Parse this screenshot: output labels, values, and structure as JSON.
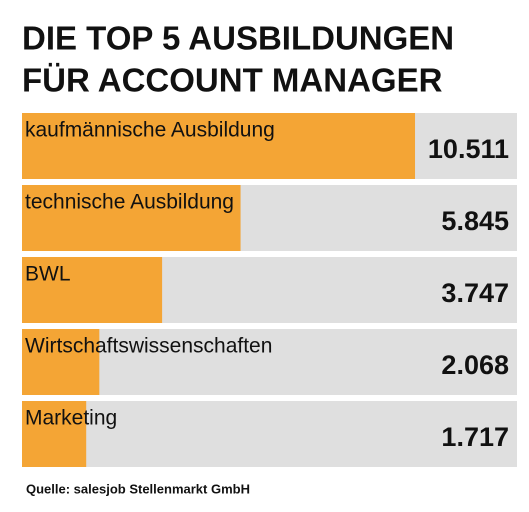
{
  "chart_data": {
    "type": "bar",
    "orientation": "horizontal",
    "title_lines": [
      "DIE TOP 5 AUSBILDUNGEN",
      "FÜR ACCOUNT MANAGER"
    ],
    "categories": [
      "kaufmännische Ausbildung",
      "technische Ausbildung",
      "BWL",
      "Wirtschaftswissenschaften",
      "Marketing"
    ],
    "values": [
      10511,
      5845,
      3747,
      2068,
      1717
    ],
    "value_labels": [
      "10.511",
      "5.845",
      "3.747",
      "2.068",
      "1.717"
    ],
    "color": "#f4a535",
    "track_color": "#dfdfdf",
    "source": "Quelle: salesjob Stellenmarkt GmbH"
  }
}
